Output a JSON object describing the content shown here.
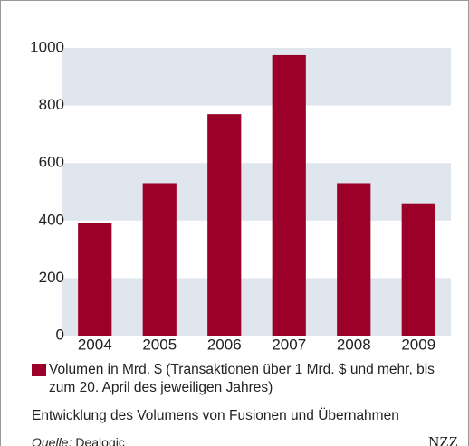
{
  "chart_data": {
    "type": "bar",
    "categories": [
      "2004",
      "2005",
      "2006",
      "2007",
      "2008",
      "2009"
    ],
    "series": [
      {
        "name": "Volumen in Mrd. $ (Transaktionen über 1 Mrd. $ und mehr, bis zum 20. April des jeweiligen Jahres)",
        "color": "#9b0028",
        "values": [
          390,
          530,
          770,
          975,
          530,
          460
        ]
      }
    ],
    "ylim": [
      0,
      1000
    ],
    "yticks": [
      0,
      200,
      400,
      600,
      800,
      1000
    ],
    "grid": "bands",
    "band_color": "#dfe6ee",
    "caption": "Entwicklung des Volumens von Fusionen und Übernahmen",
    "source_label": "Quelle:",
    "source": "Dealogic",
    "logo": "NZZ"
  }
}
